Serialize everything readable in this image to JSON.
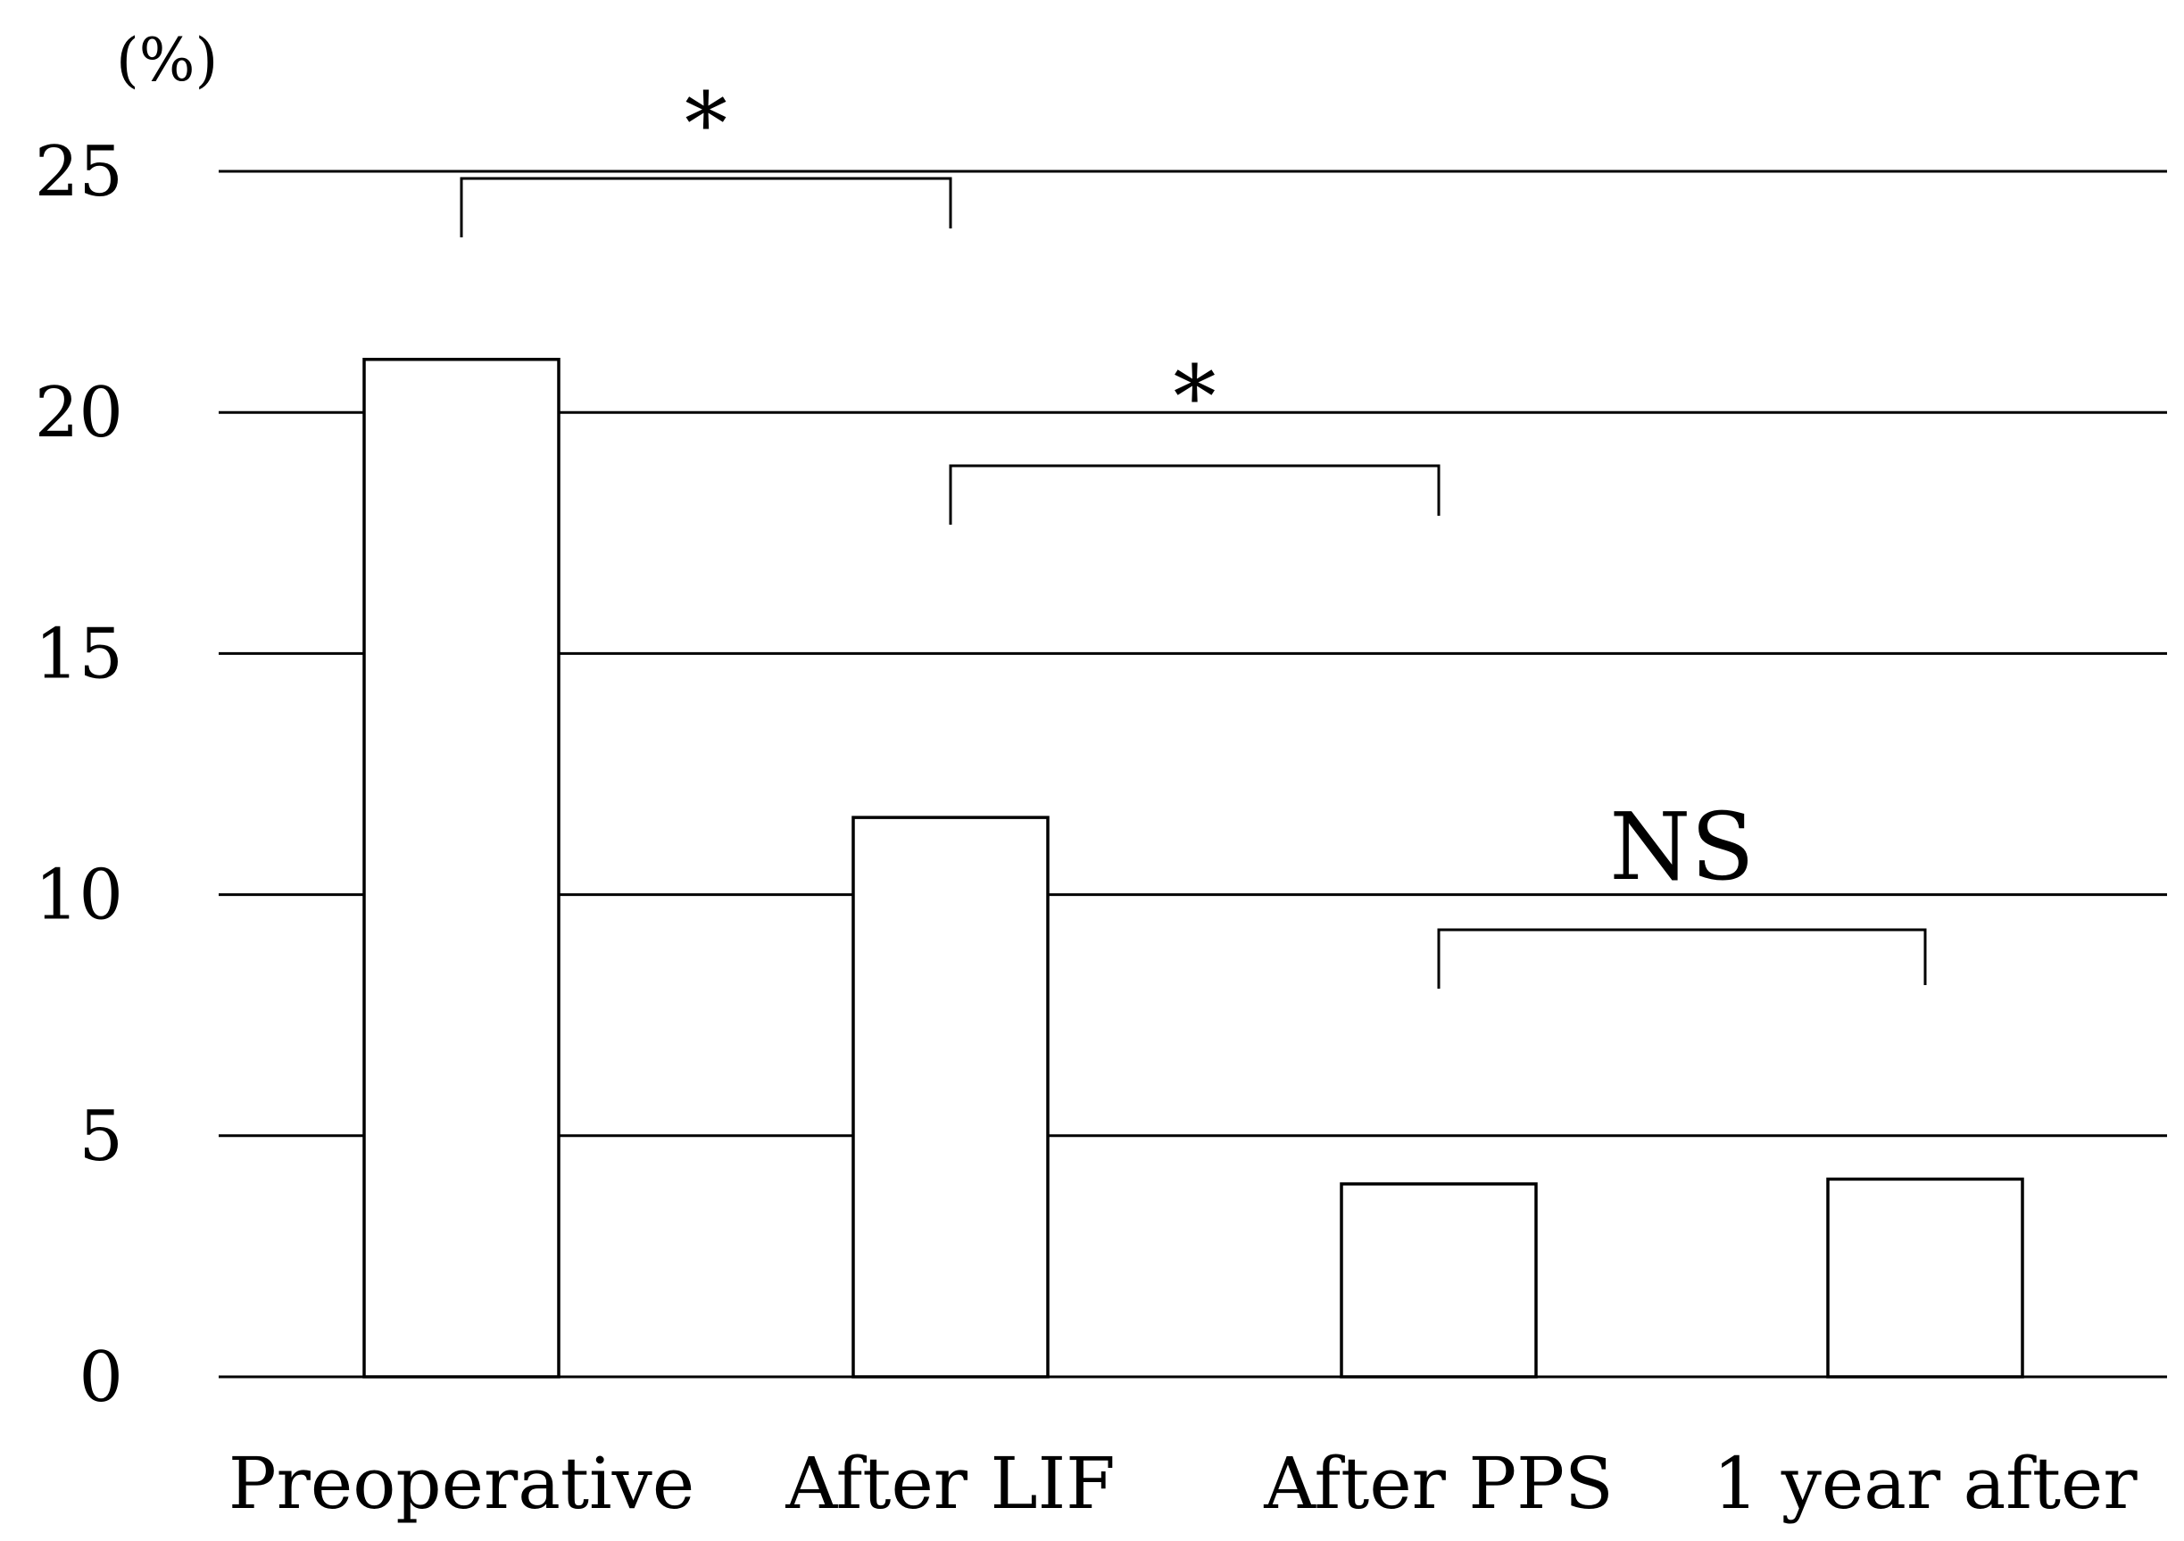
{
  "chart_data": {
    "type": "bar",
    "title": "",
    "xlabel": "",
    "ylabel": "",
    "unit_label": "(%)",
    "categories": [
      "Preoperative",
      "After LIF",
      "After PPS",
      "1 year after"
    ],
    "values": [
      21.1,
      11.6,
      4.0,
      4.1
    ],
    "ylim": [
      0,
      25
    ],
    "yticks": [
      0,
      5,
      10,
      15,
      20,
      25
    ],
    "grid": true,
    "bar_fill": "#ffffff",
    "bar_stroke": "#000000",
    "significance": [
      {
        "from": 0,
        "to": 1,
        "label": "*"
      },
      {
        "from": 1,
        "to": 2,
        "label": "*"
      },
      {
        "from": 2,
        "to": 3,
        "label": "NS"
      }
    ]
  }
}
